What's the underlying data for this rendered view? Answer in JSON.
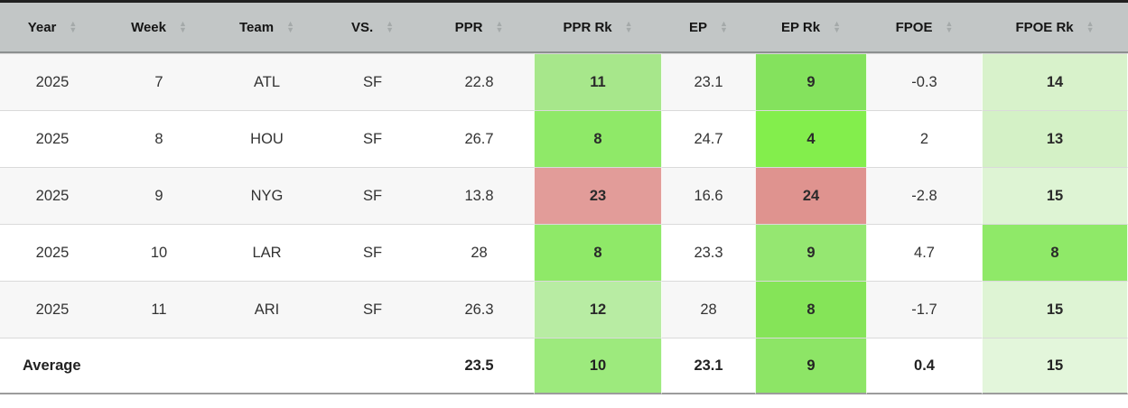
{
  "colors": {
    "header_bg": "#c2c6c6",
    "top_border": "#202020",
    "header_border": "#8d9090",
    "sort_icon": "#a4a9a9",
    "row_line": "#dadada",
    "bottom_border": "#9c9c9c",
    "row_alt_bg": "#f7f7f7",
    "rank_green_bright": "#83ee4c",
    "rank_green_pale": "#def4d4",
    "rank_red": "#e29c99"
  },
  "icons": {
    "sort_up": "▲",
    "sort_down": "▼"
  },
  "table": {
    "columns": [
      "Year",
      "Week",
      "Team",
      "VS.",
      "PPR",
      "PPR Rk",
      "EP",
      "EP Rk",
      "FPOE",
      "FPOE Rk"
    ],
    "column_keys": [
      "year",
      "week",
      "team",
      "vs",
      "ppr",
      "ppr-rk",
      "ep",
      "ep-rk",
      "fpoe",
      "fpoe-rk"
    ],
    "rank_column_indexes": [
      5,
      7,
      9
    ],
    "rows": [
      {
        "cells": [
          "2025",
          "7",
          "ATL",
          "SF",
          "22.8",
          "11",
          "23.1",
          "9",
          "-0.3",
          "14"
        ],
        "rank_colors": {
          "5": "#a7e78b",
          "7": "#84e25d",
          "9": "#d8f2cb"
        }
      },
      {
        "cells": [
          "2025",
          "8",
          "HOU",
          "SF",
          "26.7",
          "8",
          "24.7",
          "4",
          "2",
          "13"
        ],
        "rank_colors": {
          "5": "#8fe968",
          "7": "#83ee4c",
          "9": "#d4f1c6"
        }
      },
      {
        "cells": [
          "2025",
          "9",
          "NYG",
          "SF",
          "13.8",
          "23",
          "16.6",
          "24",
          "-2.8",
          "15"
        ],
        "rank_colors": {
          "5": "#e29c99",
          "7": "#df938f",
          "9": "#def4d4"
        }
      },
      {
        "cells": [
          "2025",
          "10",
          "LAR",
          "SF",
          "28",
          "8",
          "23.3",
          "9",
          "4.7",
          "8"
        ],
        "rank_colors": {
          "5": "#8fe968",
          "7": "#95e771",
          "9": "#8fe968"
        }
      },
      {
        "cells": [
          "2025",
          "11",
          "ARI",
          "SF",
          "26.3",
          "12",
          "28",
          "8",
          "-1.7",
          "15"
        ],
        "rank_colors": {
          "5": "#b8eca3",
          "7": "#85e458",
          "9": "#def4d4"
        }
      },
      {
        "cells": [
          "Average",
          "",
          "",
          "",
          "23.5",
          "10",
          "23.1",
          "9",
          "0.4",
          "15"
        ],
        "average": true,
        "rank_colors": {
          "5": "#9dea7d",
          "7": "#8de566",
          "9": "#e3f6db"
        }
      }
    ]
  }
}
